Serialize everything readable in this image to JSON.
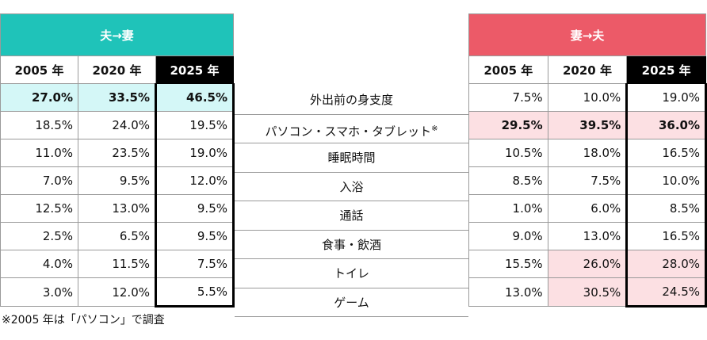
{
  "husband": {
    "title": "夫",
    "title_suffix": "→妻",
    "years": [
      "2005 年",
      "2020 年",
      "2025 年"
    ],
    "rows": [
      [
        "27.0%",
        "33.5%",
        "46.5%"
      ],
      [
        "18.5%",
        "24.0%",
        "19.5%"
      ],
      [
        "11.0%",
        "23.5%",
        "19.0%"
      ],
      [
        "7.0%",
        "9.5%",
        "12.0%"
      ],
      [
        "12.5%",
        "13.0%",
        "9.5%"
      ],
      [
        "2.5%",
        "6.5%",
        "9.5%"
      ],
      [
        "4.0%",
        "11.5%",
        "7.5%"
      ],
      [
        "3.0%",
        "12.0%",
        "5.5%"
      ]
    ]
  },
  "wife": {
    "title": "妻",
    "title_suffix": "→夫",
    "years": [
      "2005 年",
      "2020 年",
      "2025 年"
    ],
    "rows": [
      [
        "7.5%",
        "10.0%",
        "19.0%"
      ],
      [
        "29.5%",
        "39.5%",
        "36.0%"
      ],
      [
        "10.5%",
        "18.0%",
        "16.5%"
      ],
      [
        "8.5%",
        "7.5%",
        "10.0%"
      ],
      [
        "1.0%",
        "6.0%",
        "8.5%"
      ],
      [
        "9.0%",
        "13.0%",
        "16.5%"
      ],
      [
        "15.5%",
        "26.0%",
        "28.0%"
      ],
      [
        "13.0%",
        "30.5%",
        "24.5%"
      ]
    ]
  },
  "items": [
    "外出前の身支度",
    "パソコン・スマホ・タブレット",
    "睡眠時間",
    "入浴",
    "通話",
    "食事・飲酒",
    "トイレ",
    "ゲーム"
  ],
  "item_mark": "※",
  "footnote": "※2005 年は「パソコン」で調査",
  "colors": {
    "teal": "#1fc3b9",
    "pink": "#ec5a68",
    "teal_highlight": "#d4f7f7",
    "pink_highlight": "#fce0e3"
  }
}
